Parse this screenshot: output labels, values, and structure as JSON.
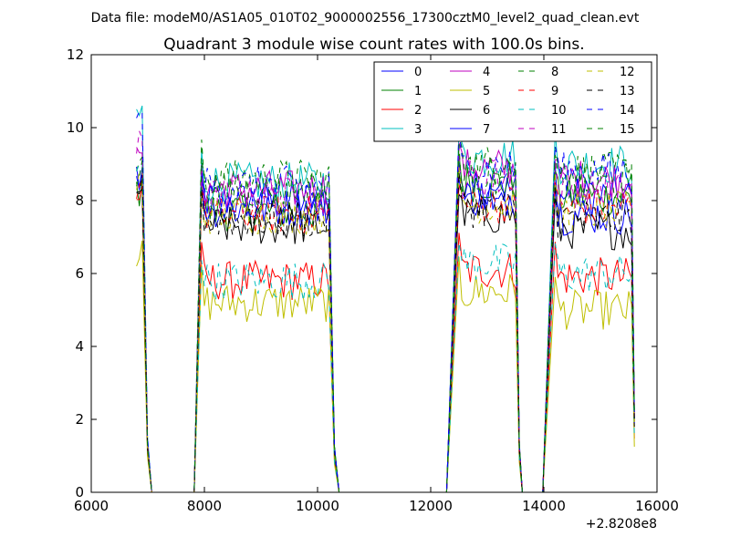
{
  "header": {
    "datafile": "Data file: modeM0/AS1A05_010T02_9000002556_17300cztM0_level2_quad_clean.evt"
  },
  "chart_data": {
    "type": "line",
    "title": "Quadrant 3 module wise count rates with 100.0s bins.",
    "xlabel": "",
    "ylabel": "",
    "xlim": [
      6000,
      16000
    ],
    "ylim": [
      0,
      12
    ],
    "x_offset_label": "+2.8208e8",
    "xticks": [
      6000,
      8000,
      10000,
      12000,
      14000,
      16000
    ],
    "yticks": [
      0,
      2,
      4,
      6,
      8,
      10,
      12
    ],
    "xtick_labels": [
      "6000",
      "8000",
      "10000",
      "12000",
      "14000",
      "16000"
    ],
    "ytick_labels": [
      "0",
      "2",
      "4",
      "6",
      "8",
      "10",
      "12"
    ],
    "grid": false,
    "legend_placement": "top-right",
    "segments": [
      {
        "t_start": 6800,
        "t_end": 6900,
        "fall_end": 7070
      },
      {
        "t_start": 7950,
        "t_end": 10200,
        "fall_end": 10380
      },
      {
        "t_start": 12500,
        "t_end": 13500,
        "fall_end": 13620
      },
      {
        "t_start": 14200,
        "t_end": 15550,
        "fall_end": 15600
      }
    ],
    "series": [
      {
        "name": "0",
        "color": "#0000ff",
        "dashed": false,
        "levels": [
          8.5,
          8.0,
          8.3,
          8.1
        ]
      },
      {
        "name": "1",
        "color": "#008000",
        "dashed": false,
        "levels": [
          8.3,
          7.7,
          8.5,
          8.1
        ]
      },
      {
        "name": "2",
        "color": "#ff0000",
        "dashed": false,
        "levels": [
          8.1,
          5.8,
          6.1,
          5.9
        ]
      },
      {
        "name": "3",
        "color": "#00bfbf",
        "dashed": false,
        "levels": [
          10.3,
          8.5,
          9.2,
          9.0
        ]
      },
      {
        "name": "4",
        "color": "#bf00bf",
        "dashed": false,
        "levels": [
          9.0,
          8.3,
          8.9,
          8.6
        ]
      },
      {
        "name": "5",
        "color": "#bfbf00",
        "dashed": false,
        "levels": [
          6.6,
          5.2,
          5.5,
          5.0
        ]
      },
      {
        "name": "6",
        "color": "#000000",
        "dashed": false,
        "levels": [
          8.0,
          7.3,
          7.6,
          7.2
        ]
      },
      {
        "name": "7",
        "color": "#0000ff",
        "dashed": false,
        "levels": [
          8.6,
          7.8,
          8.1,
          7.6
        ]
      },
      {
        "name": "8",
        "color": "#008000",
        "dashed": true,
        "levels": [
          8.9,
          8.6,
          9.0,
          8.8
        ]
      },
      {
        "name": "9",
        "color": "#ff0000",
        "dashed": true,
        "levels": [
          8.3,
          7.6,
          7.9,
          7.8
        ]
      },
      {
        "name": "10",
        "color": "#00bfbf",
        "dashed": true,
        "levels": [
          8.7,
          5.8,
          6.3,
          6.0
        ]
      },
      {
        "name": "11",
        "color": "#bf00bf",
        "dashed": true,
        "levels": [
          9.4,
          8.1,
          8.6,
          8.3
        ]
      },
      {
        "name": "12",
        "color": "#bfbf00",
        "dashed": true,
        "levels": [
          8.5,
          7.6,
          7.9,
          7.7
        ]
      },
      {
        "name": "13",
        "color": "#000000",
        "dashed": true,
        "levels": [
          8.4,
          7.5,
          7.8,
          7.5
        ]
      },
      {
        "name": "14",
        "color": "#0000ff",
        "dashed": true,
        "levels": [
          10.1,
          8.4,
          8.9,
          8.8
        ]
      },
      {
        "name": "15",
        "color": "#008000",
        "dashed": true,
        "levels": [
          8.8,
          8.3,
          8.7,
          8.5
        ]
      }
    ]
  }
}
